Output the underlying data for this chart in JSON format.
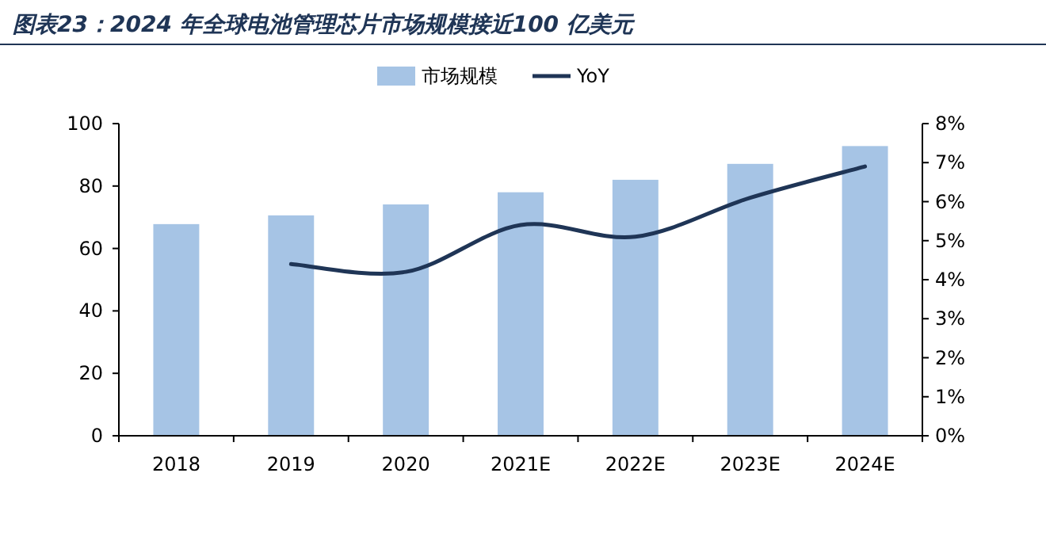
{
  "chart_data": {
    "type": "bar",
    "title": "图表23：2024 年全球电池管理芯片市场规模接近100 亿美元",
    "categories": [
      "2018",
      "2019",
      "2020",
      "2021E",
      "2022E",
      "2023E",
      "2024E"
    ],
    "series": [
      {
        "name": "市场规模",
        "color": "#a6c4e5",
        "values": [
          67.8,
          70.6,
          74.1,
          78.0,
          82.0,
          87.1,
          92.8
        ]
      },
      {
        "name": "YoY",
        "type": "line",
        "axis": "y2",
        "color": "#1f3556",
        "values": [
          null,
          4.4,
          4.2,
          5.4,
          5.1,
          6.1,
          6.9
        ]
      }
    ],
    "ylim": [
      0,
      100
    ],
    "yticks": [
      0,
      20,
      40,
      60,
      80,
      100
    ],
    "y2lim": [
      0,
      8
    ],
    "y2ticks": [
      {
        "value": 0,
        "label": "0%"
      },
      {
        "value": 1,
        "label": "1%"
      },
      {
        "value": 2,
        "label": "2%"
      },
      {
        "value": 3,
        "label": "3%"
      },
      {
        "value": 4,
        "label": "4%"
      },
      {
        "value": 5,
        "label": "5%"
      },
      {
        "value": 6,
        "label": "6%"
      },
      {
        "value": 7,
        "label": "7%"
      },
      {
        "value": 8,
        "label": "8%"
      }
    ],
    "grid": false,
    "legend": "top"
  }
}
